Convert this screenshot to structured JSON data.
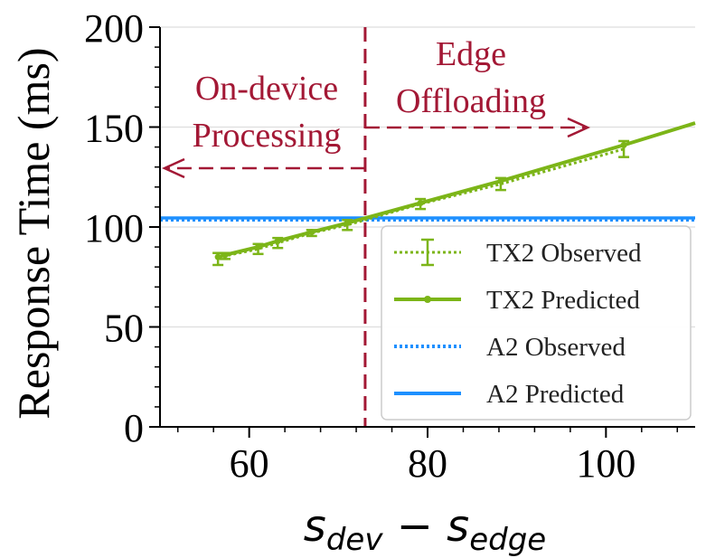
{
  "chart_data": {
    "type": "line",
    "ylabel": "Response Time (ms)",
    "xlabel_parts": {
      "base1": "s",
      "sub1": "dev",
      "op": " − ",
      "base2": "s",
      "sub2": "edge"
    },
    "xlim": [
      50,
      110
    ],
    "ylim": [
      0,
      200
    ],
    "x_ticks": [
      60,
      80,
      100
    ],
    "y_ticks": [
      0,
      50,
      100,
      150,
      200
    ],
    "grid": "horizontal",
    "legend_position": "lower-right",
    "threshold_x": 73,
    "annotations": {
      "left": [
        "On-device",
        "Processing"
      ],
      "right": [
        "Edge",
        "Offloading"
      ]
    },
    "colors": {
      "tx2": "#7cb518",
      "a2": "#1e90ff",
      "annotation": "#a31835",
      "grid": "#dddddd"
    },
    "series": [
      {
        "name": "TX2 Observed",
        "style": "dotted-errorbar",
        "x": [
          56.5,
          57.3,
          61,
          63.2,
          67,
          71,
          79.2,
          88.2,
          102
        ],
        "y": [
          84,
          85.5,
          89,
          92,
          97,
          101,
          111.5,
          121.5,
          139
        ],
        "err": [
          3,
          1.5,
          2.5,
          2.5,
          1.5,
          2.5,
          2.5,
          3,
          4
        ]
      },
      {
        "name": "TX2 Predicted",
        "style": "solid-markers",
        "x": [
          56.5,
          57.3,
          61,
          63.2,
          67,
          71,
          79.2,
          88.2,
          102,
          110
        ],
        "y": [
          85,
          86,
          90,
          93,
          97.5,
          102,
          112,
          123,
          141,
          152
        ]
      },
      {
        "name": "A2 Observed",
        "style": "dotted",
        "x": [
          50,
          110
        ],
        "y": [
          103.5,
          103.5
        ]
      },
      {
        "name": "A2 Predicted",
        "style": "solid",
        "x": [
          50,
          110
        ],
        "y": [
          104.5,
          104.5
        ]
      }
    ]
  }
}
